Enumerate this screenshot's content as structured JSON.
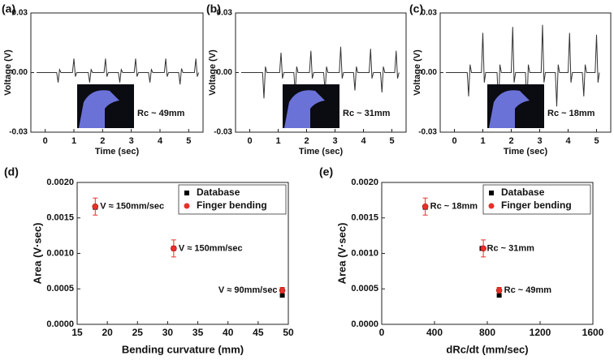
{
  "chart_data": [
    {
      "type": "line",
      "panel_label": "(a)",
      "xlabel": "Time (sec)",
      "ylabel": "Voltage (V)",
      "annotation": "Rc ~ 49mm",
      "color": "#333333",
      "xlim": [
        -0.5,
        5.5
      ],
      "xticks": [
        0,
        1,
        2,
        3,
        4,
        5
      ],
      "ylim": [
        -0.03,
        0.03
      ],
      "yticks": [
        -0.03,
        {
          "value": 0,
          "label": "0.00"
        },
        0.03
      ],
      "x": [
        -0.3,
        0.4,
        0.45,
        0.5,
        0.55,
        0.95,
        1.0,
        1.05,
        1.1,
        1.5,
        1.55,
        1.6,
        1.65,
        2.05,
        2.1,
        2.15,
        2.2,
        2.55,
        2.6,
        2.65,
        2.7,
        3.1,
        3.15,
        3.2,
        3.25,
        3.6,
        3.65,
        3.7,
        3.75,
        4.15,
        4.2,
        4.25,
        4.3,
        4.65,
        4.7,
        4.75,
        4.8,
        5.2,
        5.25,
        5.3,
        5.35
      ],
      "values": [
        0,
        0,
        -0.005,
        0.0015,
        0,
        0,
        0.007,
        -0.002,
        0,
        0,
        -0.005,
        0.0015,
        0,
        0,
        0.007,
        -0.002,
        0,
        0,
        -0.005,
        0.0015,
        0,
        0,
        0.007,
        -0.002,
        0,
        0,
        -0.005,
        0.0015,
        0,
        0,
        0.007,
        -0.002,
        0,
        0,
        -0.006,
        0.002,
        0,
        0,
        0.007,
        -0.002,
        0
      ]
    },
    {
      "type": "line",
      "panel_label": "(b)",
      "xlabel": "Time (sec)",
      "ylabel": "Voltage (V)",
      "annotation": "Rc ~ 31mm",
      "color": "#333333",
      "xlim": [
        -0.5,
        5.5
      ],
      "xticks": [
        0,
        1,
        2,
        3,
        4,
        5
      ],
      "ylim": [
        -0.03,
        0.03
      ],
      "yticks": [
        -0.03,
        {
          "value": 0,
          "label": "0.00"
        },
        0.03
      ],
      "x": [
        -0.3,
        0.45,
        0.5,
        0.55,
        0.6,
        1.05,
        1.1,
        1.15,
        1.2,
        1.55,
        1.6,
        1.65,
        1.7,
        2.1,
        2.15,
        2.2,
        2.25,
        2.6,
        2.65,
        2.7,
        2.75,
        3.15,
        3.2,
        3.25,
        3.3,
        3.65,
        3.7,
        3.75,
        3.8,
        4.2,
        4.25,
        4.3,
        4.35,
        4.6,
        4.65,
        4.7,
        4.75,
        5.1,
        5.15,
        5.2,
        5.25
      ],
      "values": [
        0,
        0,
        -0.013,
        0.003,
        0,
        0,
        0.01,
        -0.003,
        0,
        0,
        -0.01,
        0.003,
        0,
        0,
        0.011,
        -0.003,
        0,
        0,
        -0.01,
        0.003,
        0,
        0,
        0.013,
        -0.003,
        0,
        0,
        -0.009,
        0.003,
        0,
        0,
        0.012,
        -0.003,
        0,
        0,
        -0.01,
        0.003,
        0,
        0,
        0.011,
        -0.003,
        0
      ]
    },
    {
      "type": "line",
      "panel_label": "(c)",
      "xlabel": "Time (sec)",
      "ylabel": "Voltage (V)",
      "annotation": "Rc ~ 18mm",
      "color": "#333333",
      "xlim": [
        -0.5,
        5.5
      ],
      "xticks": [
        0,
        1,
        2,
        3,
        4,
        5
      ],
      "ylim": [
        -0.03,
        0.03
      ],
      "yticks": [
        -0.03,
        {
          "value": 0,
          "label": "0.00"
        },
        0.03
      ],
      "x": [
        -0.3,
        0.45,
        0.5,
        0.55,
        0.6,
        0.95,
        1.0,
        1.05,
        1.1,
        1.5,
        1.55,
        1.6,
        1.65,
        2.0,
        2.05,
        2.1,
        2.15,
        2.5,
        2.55,
        2.6,
        2.65,
        3.05,
        3.1,
        3.15,
        3.2,
        3.55,
        3.6,
        3.65,
        3.7,
        4.0,
        4.05,
        4.1,
        4.15,
        4.5,
        4.55,
        4.6,
        4.65,
        4.95,
        5.0,
        5.05,
        5.1
      ],
      "values": [
        0,
        0,
        -0.012,
        0.004,
        0,
        0,
        0.02,
        -0.005,
        0,
        0,
        -0.017,
        0.004,
        0,
        0,
        0.023,
        -0.005,
        0,
        0,
        -0.017,
        0.004,
        0,
        0,
        0.024,
        -0.005,
        0,
        0,
        -0.017,
        0.004,
        0,
        0,
        0.02,
        -0.005,
        0,
        0,
        -0.012,
        0.004,
        0,
        0,
        0.019,
        -0.005,
        0
      ]
    },
    {
      "type": "scatter",
      "panel_label": "(d)",
      "xlabel": "Bending curvature (mm)",
      "ylabel": "Area (V·sec)",
      "legend": "upper right",
      "annotations": [
        "V ≈ 150mm/sec",
        "V ≈ 150mm/sec",
        "V ≈ 90mm/sec"
      ],
      "xlim": [
        15,
        50
      ],
      "xticks": [
        15,
        20,
        25,
        30,
        35,
        40,
        45,
        50
      ],
      "ylim": [
        0,
        0.002
      ],
      "yticks": [
        {
          "value": 0,
          "label": "0.0000"
        },
        0.0005,
        {
          "value": 0.001,
          "label": "0.0010"
        },
        0.0015,
        {
          "value": 0.002,
          "label": "0.0020"
        }
      ],
      "series": [
        {
          "name": "Database",
          "color": "#000000",
          "marker": "square",
          "x": [
            18,
            31,
            49
          ],
          "values": [
            0.00165,
            0.00107,
            0.00041
          ]
        },
        {
          "name": "Finger bending",
          "color": "#e8302a",
          "marker": "circle",
          "x": [
            18,
            31,
            49
          ],
          "values": [
            0.00166,
            0.00107,
            0.00048
          ],
          "errors": [
            0.00012,
            0.00012,
            4e-05
          ]
        }
      ]
    },
    {
      "type": "scatter",
      "panel_label": "(e)",
      "xlabel": "dRc/dt (mm/sec)",
      "ylabel": "Area (V·sec)",
      "legend": "upper right",
      "annotations": [
        "Rc ~ 18mm",
        "Rc ~ 31mm",
        "Rc ~ 49mm"
      ],
      "xlim": [
        0,
        1600
      ],
      "xticks": [
        0,
        400,
        800,
        1200,
        1600
      ],
      "ylim": [
        0,
        0.002
      ],
      "yticks": [
        {
          "value": 0,
          "label": "0.0000"
        },
        0.0005,
        {
          "value": 0.001,
          "label": "0.0010"
        },
        0.0015,
        {
          "value": 0.002,
          "label": "0.0020"
        }
      ],
      "series": [
        {
          "name": "Database",
          "color": "#000000",
          "marker": "square",
          "x": [
            330,
            760,
            890
          ],
          "values": [
            0.00165,
            0.00107,
            0.00041
          ]
        },
        {
          "name": "Finger bending",
          "color": "#e8302a",
          "marker": "circle",
          "x": [
            330,
            770,
            890
          ],
          "values": [
            0.00166,
            0.00107,
            0.00048
          ],
          "errors": [
            0.00012,
            0.00012,
            4e-05
          ]
        }
      ]
    }
  ]
}
